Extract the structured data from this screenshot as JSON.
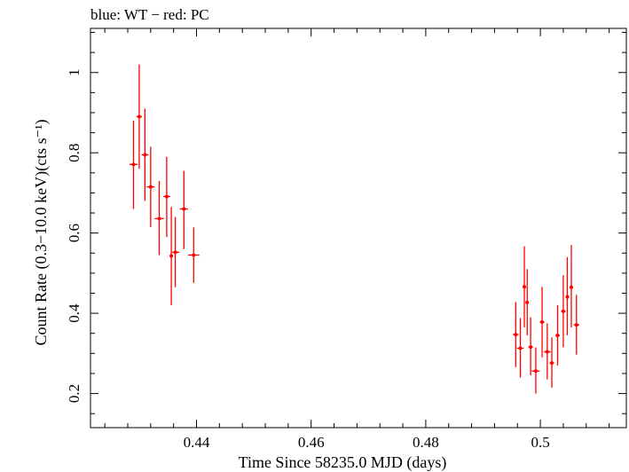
{
  "chart_data": {
    "type": "scatter",
    "title": "blue: WT − red: PC",
    "xlabel": "Time Since 58235.0 MJD (days)",
    "ylabel": "Count Rate (0.3−10.0 keV)(cts s⁻¹)",
    "xlim": [
      0.4215,
      0.515
    ],
    "ylim": [
      0.115,
      1.11
    ],
    "xticks": [
      0.44,
      0.46,
      0.48,
      0.5
    ],
    "xtick_labels": [
      "0.44",
      "0.46",
      "0.48",
      "0.5"
    ],
    "yticks": [
      0.2,
      0.4,
      0.6,
      0.8,
      1.0
    ],
    "ytick_labels": [
      "0.2",
      "0.4",
      "0.6",
      "0.8",
      "1"
    ],
    "grid": false,
    "series": [
      {
        "color": "#ff0000",
        "points": [
          {
            "x": 0.429,
            "y": 0.771,
            "xerr": 0.0007,
            "ylo": 0.66,
            "yhi": 0.88
          },
          {
            "x": 0.43,
            "y": 0.89,
            "xerr": 0.0005,
            "ylo": 0.76,
            "yhi": 1.02
          },
          {
            "x": 0.431,
            "y": 0.795,
            "xerr": 0.0006,
            "ylo": 0.68,
            "yhi": 0.91
          },
          {
            "x": 0.432,
            "y": 0.715,
            "xerr": 0.0007,
            "ylo": 0.615,
            "yhi": 0.815
          },
          {
            "x": 0.4335,
            "y": 0.636,
            "xerr": 0.0008,
            "ylo": 0.545,
            "yhi": 0.73
          },
          {
            "x": 0.4348,
            "y": 0.691,
            "xerr": 0.0006,
            "ylo": 0.59,
            "yhi": 0.79
          },
          {
            "x": 0.4356,
            "y": 0.543,
            "xerr": 0.0003,
            "ylo": 0.42,
            "yhi": 0.665
          },
          {
            "x": 0.4363,
            "y": 0.552,
            "xerr": 0.0007,
            "ylo": 0.465,
            "yhi": 0.64
          },
          {
            "x": 0.4378,
            "y": 0.66,
            "xerr": 0.0007,
            "ylo": 0.56,
            "yhi": 0.755
          },
          {
            "x": 0.4395,
            "y": 0.545,
            "xerr": 0.001,
            "ylo": 0.476,
            "yhi": 0.614
          },
          {
            "x": 0.4957,
            "y": 0.347,
            "xerr": 0.0005,
            "ylo": 0.266,
            "yhi": 0.428
          },
          {
            "x": 0.4965,
            "y": 0.313,
            "xerr": 0.0006,
            "ylo": 0.24,
            "yhi": 0.388
          },
          {
            "x": 0.4972,
            "y": 0.466,
            "xerr": 0.0003,
            "ylo": 0.365,
            "yhi": 0.567
          },
          {
            "x": 0.4977,
            "y": 0.427,
            "xerr": 0.0003,
            "ylo": 0.345,
            "yhi": 0.51
          },
          {
            "x": 0.4983,
            "y": 0.316,
            "xerr": 0.0004,
            "ylo": 0.245,
            "yhi": 0.39
          },
          {
            "x": 0.4992,
            "y": 0.256,
            "xerr": 0.0007,
            "ylo": 0.2,
            "yhi": 0.315
          },
          {
            "x": 0.5003,
            "y": 0.378,
            "xerr": 0.0004,
            "ylo": 0.29,
            "yhi": 0.466
          },
          {
            "x": 0.5012,
            "y": 0.304,
            "xerr": 0.0006,
            "ylo": 0.235,
            "yhi": 0.375
          },
          {
            "x": 0.502,
            "y": 0.276,
            "xerr": 0.0004,
            "ylo": 0.215,
            "yhi": 0.34
          },
          {
            "x": 0.503,
            "y": 0.345,
            "xerr": 0.0004,
            "ylo": 0.27,
            "yhi": 0.42
          },
          {
            "x": 0.504,
            "y": 0.405,
            "xerr": 0.0004,
            "ylo": 0.315,
            "yhi": 0.495
          },
          {
            "x": 0.5047,
            "y": 0.441,
            "xerr": 0.0003,
            "ylo": 0.345,
            "yhi": 0.54
          },
          {
            "x": 0.5054,
            "y": 0.465,
            "xerr": 0.0003,
            "ylo": 0.365,
            "yhi": 0.57
          },
          {
            "x": 0.5063,
            "y": 0.371,
            "xerr": 0.0005,
            "ylo": 0.297,
            "yhi": 0.446
          }
        ]
      }
    ]
  }
}
